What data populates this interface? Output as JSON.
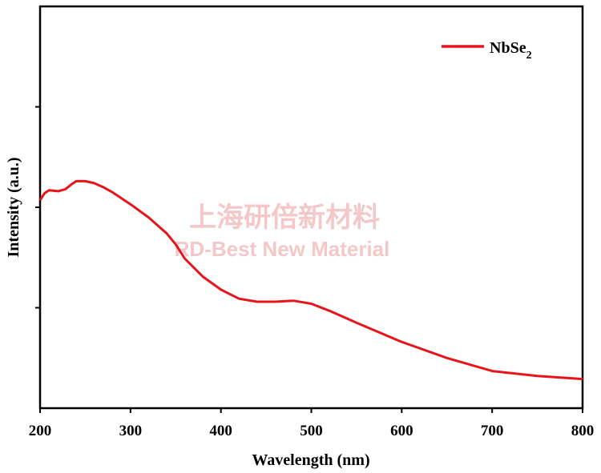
{
  "chart_data": {
    "type": "line",
    "title": "",
    "xlabel": "Wavelength (nm)",
    "ylabel": "Intensity (a.u.)",
    "xlim": [
      200,
      800
    ],
    "ylim": [
      0,
      4
    ],
    "xticks": [
      200,
      300,
      400,
      500,
      600,
      700,
      800
    ],
    "xtick_labels": [
      "200",
      "300",
      "400",
      "500",
      "600",
      "700",
      "800"
    ],
    "yticks": [
      1,
      2,
      3
    ],
    "grid": false,
    "legend_position": "top-right",
    "series": [
      {
        "name": "NbSe",
        "name_subscript": "2",
        "color": "#e8141c",
        "x": [
          200,
          205,
          210,
          220,
          228,
          235,
          240,
          250,
          260,
          270,
          280,
          300,
          320,
          340,
          350,
          360,
          380,
          400,
          420,
          440,
          460,
          480,
          500,
          520,
          550,
          600,
          650,
          700,
          750,
          800
        ],
        "y": [
          2.07,
          2.14,
          2.17,
          2.16,
          2.18,
          2.23,
          2.26,
          2.26,
          2.24,
          2.2,
          2.15,
          2.03,
          1.9,
          1.74,
          1.63,
          1.49,
          1.31,
          1.18,
          1.09,
          1.06,
          1.06,
          1.07,
          1.04,
          0.97,
          0.85,
          0.66,
          0.5,
          0.37,
          0.32,
          0.29
        ]
      }
    ]
  },
  "watermark": {
    "line1": "上海研倍新材料",
    "line2": "RD-Best New Material"
  }
}
